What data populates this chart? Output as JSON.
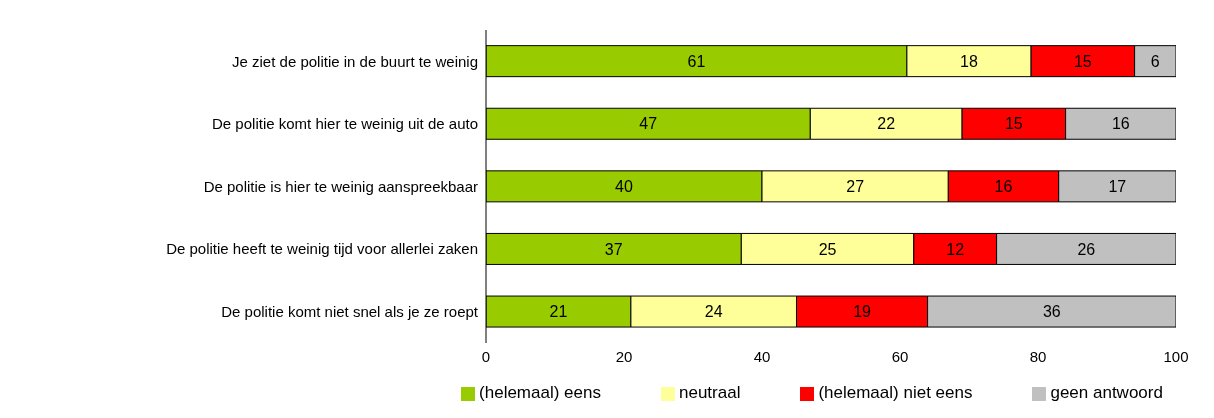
{
  "chart_data": {
    "type": "bar",
    "orientation": "horizontal",
    "stacked": true,
    "categories": [
      "Je ziet de politie in de buurt te weinig",
      "De politie komt hier te weinig uit de auto",
      "De politie is hier te weinig aanspreekbaar",
      "De politie heeft te weinig tijd voor allerlei zaken",
      "De politie komt niet snel als je ze roept"
    ],
    "series": [
      {
        "name": "(helemaal) eens",
        "color": "#99cc00",
        "values": [
          61,
          47,
          40,
          37,
          21
        ]
      },
      {
        "name": "neutraal",
        "color": "#ffff99",
        "values": [
          18,
          22,
          27,
          25,
          24
        ]
      },
      {
        "name": "(helemaal) niet eens",
        "color": "#ff0000",
        "values": [
          15,
          15,
          16,
          12,
          19
        ]
      },
      {
        "name": "geen antwoord",
        "color": "#c0c0c0",
        "values": [
          6,
          16,
          17,
          26,
          36
        ]
      }
    ],
    "xlim": [
      0,
      100
    ],
    "xticks": [
      0,
      20,
      40,
      60,
      80,
      100
    ],
    "grid": false,
    "legend": "bottom",
    "data_labels": true
  }
}
